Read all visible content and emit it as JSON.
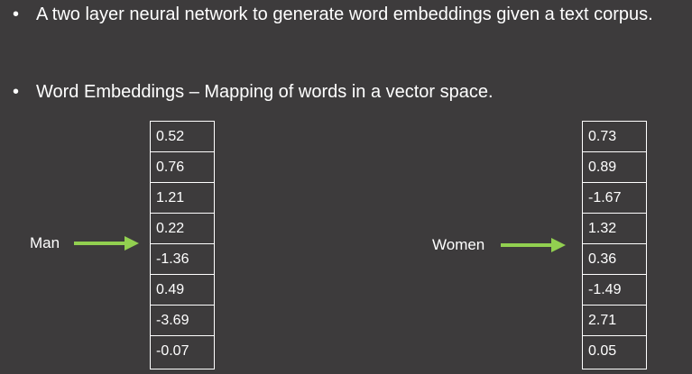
{
  "bullets": [
    {
      "symbol": "•",
      "text": "A two layer neural network to generate word embeddings given a text corpus."
    },
    {
      "symbol": "•",
      "text": "Word Embeddings – Mapping of words in a vector space."
    }
  ],
  "embeddings": {
    "man": {
      "label": "Man",
      "values": [
        "0.52",
        "0.76",
        "1.21",
        "0.22",
        "-1.36",
        "0.49",
        "-3.69",
        "-0.07"
      ]
    },
    "women": {
      "label": "Women",
      "values": [
        "0.73",
        "0.89",
        "-1.67",
        "1.32",
        "0.36",
        "-1.49",
        "2.71",
        "0.05"
      ]
    }
  },
  "colors": {
    "background": "#3d3b3c",
    "text": "#ffffff",
    "arrow": "#92d050"
  }
}
